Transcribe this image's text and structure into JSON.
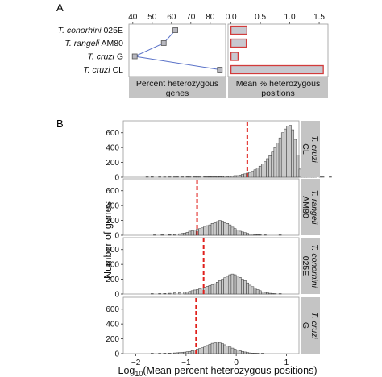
{
  "panel_a": {
    "letter": "A",
    "rows": [
      {
        "species": "T. conorhini",
        "strain": "025E"
      },
      {
        "species": "T. rangeli",
        "strain": "AM80"
      },
      {
        "species": "T. cruzi",
        "strain": "G"
      },
      {
        "species": "T. cruzi",
        "strain": "CL"
      }
    ],
    "left_strip": [
      "Percent heterozygous",
      "genes"
    ],
    "right_strip": [
      "Mean % heterozygous",
      "positions"
    ]
  },
  "panel_b": {
    "letter": "B",
    "y_title": "Number of genes",
    "x_title_prefix": "Log",
    "x_title_sub": "10",
    "x_title_suffix": "(Mean percent heterozygous positions)",
    "facet_labels": [
      {
        "species": "T. cruzi",
        "strain": "CL"
      },
      {
        "species": "T. rangeli",
        "strain": "AM80"
      },
      {
        "species": "T. conorhini",
        "strain": "025E"
      },
      {
        "species": "T. cruzi",
        "strain": "G"
      }
    ]
  },
  "colors": {
    "point_fill": "#b8b8bf",
    "line": "#5a72c8",
    "bar_fill": "#c8c8cf",
    "bar_outline": "#d23b3b",
    "hist_fill": "#c9c9c9",
    "mean_line": "#e0201c",
    "strip": "#c4c4c4"
  },
  "chart_data": [
    {
      "type": "line",
      "panel": "A-left",
      "categories": [
        "T. conorhini 025E",
        "T. rangeli AM80",
        "T. cruzi G",
        "T. cruzi CL"
      ],
      "values": [
        62,
        56,
        41,
        85
      ],
      "xlim": [
        38,
        88
      ],
      "xticks": [
        40,
        50,
        60,
        70,
        80
      ],
      "xlabel": "Percent heterozygous genes"
    },
    {
      "type": "bar",
      "panel": "A-right",
      "categories": [
        "T. conorhini 025E",
        "T. rangeli AM80",
        "T. cruzi G",
        "T. cruzi CL"
      ],
      "values": [
        0.27,
        0.26,
        0.12,
        1.57
      ],
      "xlim": [
        -0.05,
        1.65
      ],
      "xticks": [
        0.0,
        0.5,
        1.0,
        1.5
      ],
      "xtick_labels": [
        "0.0",
        "0.5",
        "1.0",
        "1.5"
      ],
      "xlabel": "Mean % heterozygous positions"
    },
    {
      "type": "bar",
      "panel": "B",
      "bin_width": 0.05,
      "x_start": -1.8,
      "xlim": [
        -2.25,
        1.25
      ],
      "xticks": [
        -2,
        -1,
        0,
        1
      ],
      "ylim": [
        0,
        760
      ],
      "yticks": [
        0,
        200,
        400,
        600
      ],
      "xlabel": "Log10(Mean percent heterozygous positions)",
      "ylabel": "Number of genes",
      "series": [
        {
          "name": "T. cruzi CL",
          "mean": 0.22,
          "values": [
            5,
            0,
            6,
            0,
            0,
            5,
            0,
            4,
            0,
            5,
            0,
            5,
            6,
            0,
            5,
            0,
            6,
            5,
            0,
            6,
            5,
            5,
            0,
            8,
            6,
            8,
            6,
            8,
            10,
            8,
            10,
            14,
            10,
            15,
            18,
            22,
            22,
            30,
            38,
            45,
            55,
            65,
            80,
            100,
            125,
            150,
            180,
            210,
            250,
            290,
            340,
            400,
            460,
            530,
            600,
            650,
            690,
            700,
            640,
            510,
            300,
            110,
            40,
            15,
            10,
            5,
            6,
            5,
            0,
            5,
            5,
            0,
            0,
            5,
            0,
            0,
            0,
            0,
            0,
            0
          ]
        },
        {
          "name": "T. rangeli AM80",
          "mean": -0.78,
          "values": [
            0,
            0,
            0,
            5,
            0,
            0,
            6,
            0,
            0,
            8,
            0,
            10,
            0,
            20,
            25,
            30,
            40,
            55,
            60,
            70,
            80,
            90,
            100,
            120,
            130,
            140,
            160,
            170,
            185,
            200,
            190,
            170,
            160,
            140,
            110,
            90,
            70,
            55,
            45,
            35,
            25,
            18,
            15,
            10,
            8,
            6,
            0,
            5,
            0,
            0,
            0,
            0,
            0,
            5,
            0,
            0,
            0,
            0,
            0,
            0,
            0,
            0,
            0,
            0,
            0,
            0,
            0,
            0,
            0,
            0,
            0,
            0,
            0,
            0,
            0,
            0,
            0,
            0,
            0,
            0
          ]
        },
        {
          "name": "T. conorhini 025E",
          "mean": -0.65,
          "values": [
            0,
            0,
            5,
            0,
            0,
            6,
            0,
            8,
            0,
            10,
            0,
            15,
            0,
            20,
            0,
            25,
            28,
            35,
            45,
            55,
            60,
            70,
            80,
            95,
            105,
            115,
            125,
            140,
            160,
            180,
            200,
            220,
            240,
            260,
            270,
            260,
            245,
            225,
            200,
            180,
            150,
            120,
            100,
            80,
            60,
            45,
            30,
            22,
            15,
            10,
            6,
            5,
            0,
            5,
            0,
            0,
            0,
            0,
            0,
            0,
            0,
            0,
            0,
            0,
            0,
            0,
            0,
            0,
            0,
            0,
            0,
            0,
            0,
            0,
            0,
            0,
            0,
            0,
            0,
            0
          ]
        },
        {
          "name": "T. cruzi G",
          "mean": -0.8,
          "values": [
            0,
            0,
            5,
            0,
            0,
            5,
            0,
            6,
            0,
            8,
            0,
            10,
            12,
            15,
            18,
            20,
            25,
            30,
            40,
            50,
            60,
            70,
            80,
            90,
            110,
            125,
            140,
            150,
            155,
            145,
            135,
            120,
            105,
            90,
            75,
            60,
            50,
            40,
            30,
            22,
            15,
            10,
            8,
            6,
            5,
            0,
            5,
            0,
            0,
            0,
            0,
            0,
            0,
            0,
            0,
            0,
            0,
            0,
            0,
            0,
            0,
            0,
            0,
            0,
            0,
            0,
            0,
            0,
            0,
            0,
            0,
            0,
            0,
            0,
            0,
            0,
            0,
            0,
            0,
            0
          ]
        }
      ]
    }
  ]
}
